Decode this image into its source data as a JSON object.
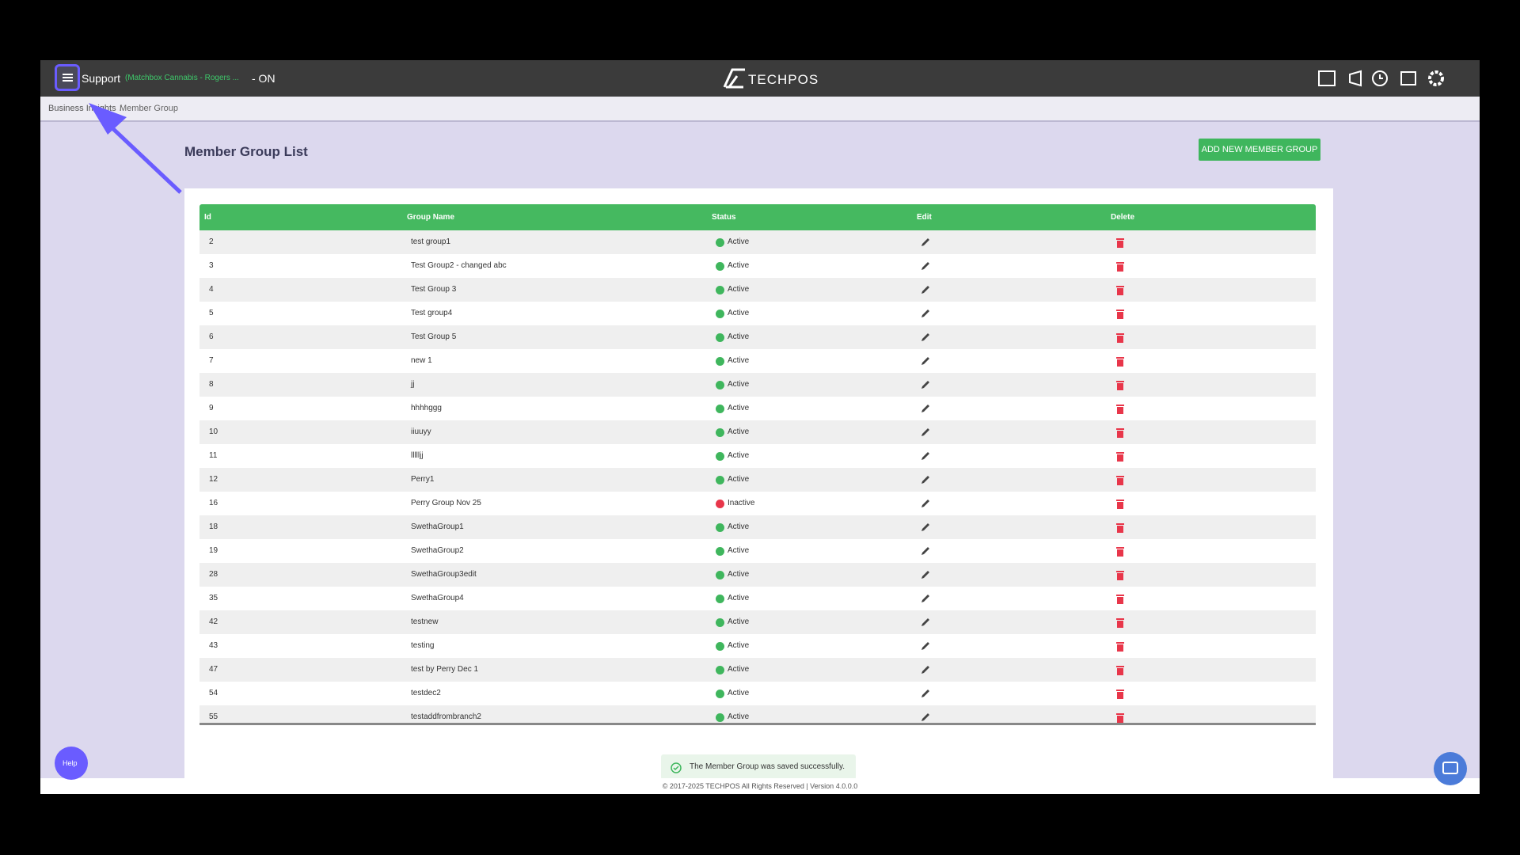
{
  "header": {
    "user": "Support",
    "store": "(Matchbox Cannabis - Rogers ...",
    "mode": "- ON",
    "logo": "TECHPOS"
  },
  "breadcrumb": [
    "Business Insights",
    "Member Group"
  ],
  "page": {
    "title": "Member Group List",
    "add_button": "ADD NEW MEMBER GROUP"
  },
  "table": {
    "columns": [
      "Id",
      "Group Name",
      "Status",
      "Edit",
      "Delete"
    ],
    "rows": [
      [
        "2",
        "test group1",
        "Active"
      ],
      [
        "3",
        "Test Group2 - changed abc",
        "Active"
      ],
      [
        "4",
        "Test Group 3",
        "Active"
      ],
      [
        "5",
        "Test group4",
        "Active"
      ],
      [
        "6",
        "Test Group 5",
        "Active"
      ],
      [
        "7",
        "new 1",
        "Active"
      ],
      [
        "8",
        "jj",
        "Active"
      ],
      [
        "9",
        "hhhhggg",
        "Active"
      ],
      [
        "10",
        "iiuuyy",
        "Active"
      ],
      [
        "11",
        "llllljj",
        "Active"
      ],
      [
        "12",
        "Perry1",
        "Active"
      ],
      [
        "16",
        "Perry Group Nov 25",
        "Inactive"
      ],
      [
        "18",
        "SwethaGroup1",
        "Active"
      ],
      [
        "19",
        "SwethaGroup2",
        "Active"
      ],
      [
        "28",
        "SwethaGroup3edit",
        "Active"
      ],
      [
        "35",
        "SwethaGroup4",
        "Active"
      ],
      [
        "42",
        "testnew",
        "Active"
      ],
      [
        "43",
        "testing",
        "Active"
      ],
      [
        "47",
        "test by Perry Dec 1",
        "Active"
      ],
      [
        "54",
        "testdec2",
        "Active"
      ],
      [
        "55",
        "testaddfrombranch2",
        "Active"
      ]
    ]
  },
  "toast": "The Member Group was saved successfully.",
  "footer": "© 2017-2025 TECHPOS All Rights Reserved | Version 4.0.0.0",
  "help": "Help"
}
